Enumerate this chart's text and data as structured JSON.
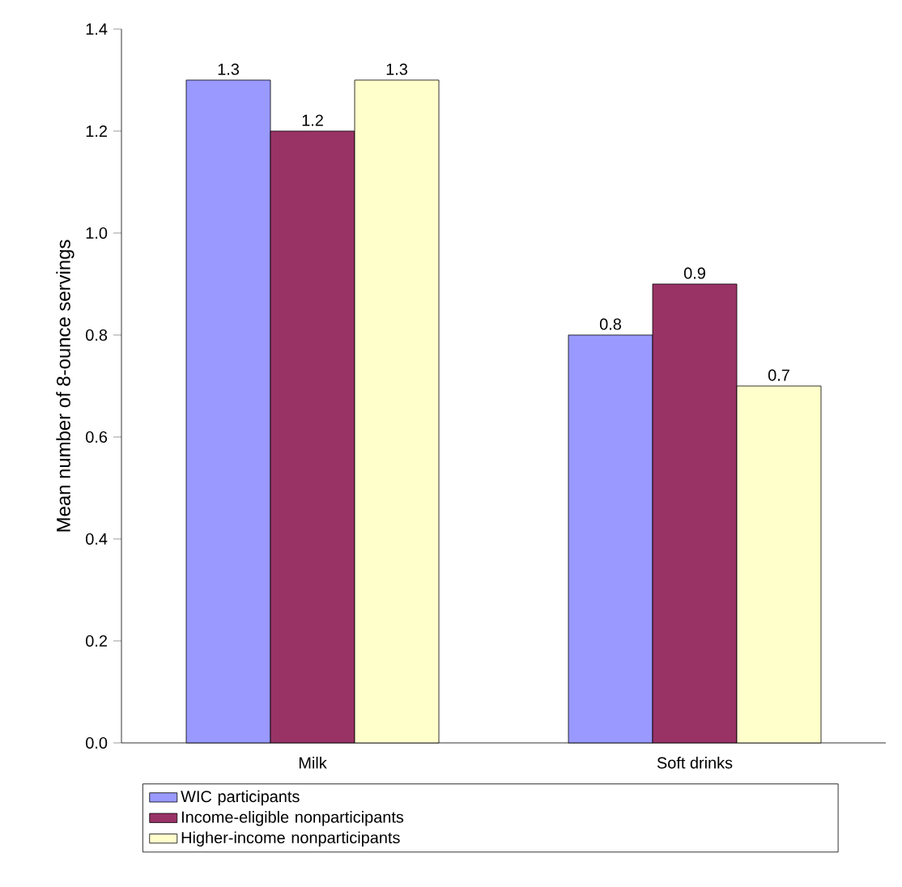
{
  "chart_data": {
    "type": "bar",
    "ylabel": "Mean number of 8-ounce servings",
    "categories": [
      "Milk",
      "Soft drinks"
    ],
    "series": [
      {
        "name": "WIC participants",
        "color": "#9999ff",
        "values": [
          1.3,
          0.8
        ]
      },
      {
        "name": "Income-eligible nonparticipants",
        "color": "#993366",
        "values": [
          1.2,
          0.9
        ]
      },
      {
        "name": "Higher-income nonparticipants",
        "color": "#ffffcc",
        "values": [
          1.3,
          0.7
        ]
      }
    ],
    "ylim": [
      0,
      1.4
    ],
    "yticks": [
      {
        "value": 0,
        "label": "0.0"
      },
      {
        "value": 0.2,
        "label": "0.2"
      },
      {
        "value": 0.4,
        "label": "0.4"
      },
      {
        "value": 0.6,
        "label": "0.6"
      },
      {
        "value": 0.8,
        "label": "0.8"
      },
      {
        "value": 1.0,
        "label": "1.0"
      },
      {
        "value": 1.2,
        "label": "1.2"
      },
      {
        "value": 1.4,
        "label": "1.4"
      }
    ],
    "data_labels": true,
    "legend": "bottom",
    "grid": false
  }
}
